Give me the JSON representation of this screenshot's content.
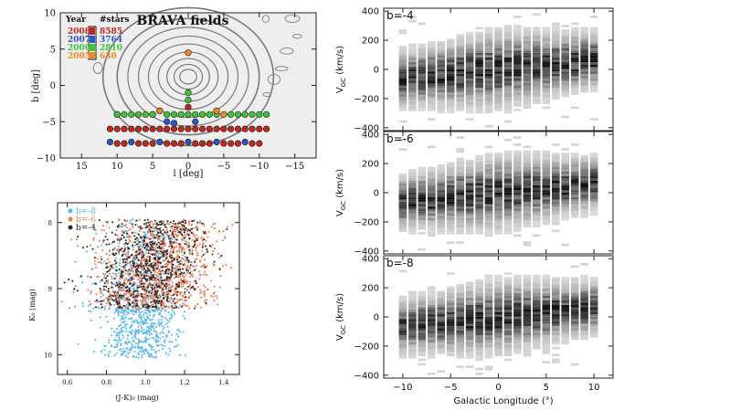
{
  "chart_data": [
    {
      "id": "brava",
      "type": "scatter",
      "title": "BRAVA fields",
      "xlabel": "l [deg]",
      "ylabel": "b [deg]",
      "xlim": [
        18,
        -18
      ],
      "ylim": [
        -10,
        10
      ],
      "xticks": [
        15,
        10,
        5,
        0,
        -5,
        -10,
        -15
      ],
      "yticks": [
        10,
        5,
        0,
        -5,
        -10
      ],
      "legend": {
        "header_year": "Year",
        "header_stars": "#stars",
        "rows": [
          {
            "year": "2008",
            "stars": "8585",
            "color": "#c0281c"
          },
          {
            "year": "2007",
            "stars": "3764",
            "color": "#2a55c8"
          },
          {
            "year": "2006",
            "stars": "2810",
            "color": "#3fc43a"
          },
          {
            "year": "2005",
            "stars": "630",
            "color": "#f08a20"
          }
        ]
      },
      "series": [
        {
          "year": "2008",
          "color": "#c0281c",
          "points": [
            [
              11,
              -6
            ],
            [
              10,
              -6
            ],
            [
              9,
              -6
            ],
            [
              8,
              -6
            ],
            [
              7,
              -6
            ],
            [
              6,
              -6
            ],
            [
              5,
              -6
            ],
            [
              4,
              -6
            ],
            [
              3,
              -6
            ],
            [
              2,
              -6
            ],
            [
              1,
              -6
            ],
            [
              0,
              -6
            ],
            [
              -1,
              -6
            ],
            [
              -2,
              -6
            ],
            [
              -3,
              -6
            ],
            [
              -4,
              -6
            ],
            [
              -5,
              -6
            ],
            [
              -6,
              -6
            ],
            [
              -7,
              -6
            ],
            [
              -8,
              -6
            ],
            [
              -9,
              -6
            ],
            [
              -10,
              -6
            ],
            [
              -11,
              -6
            ],
            [
              10,
              -8
            ],
            [
              9,
              -8
            ],
            [
              7,
              -8
            ],
            [
              6,
              -8
            ],
            [
              5,
              -8
            ],
            [
              3,
              -8
            ],
            [
              2,
              -8
            ],
            [
              1,
              -8
            ],
            [
              -1,
              -8
            ],
            [
              -2,
              -8
            ],
            [
              -3,
              -8
            ],
            [
              -5,
              -8
            ],
            [
              -6,
              -8
            ],
            [
              -7,
              -8
            ],
            [
              -9,
              -8
            ],
            [
              -10,
              -8
            ],
            [
              10,
              -4
            ],
            [
              4,
              -3.5
            ],
            [
              0,
              -3
            ]
          ]
        },
        {
          "year": "2007",
          "color": "#2a55c8",
          "points": [
            [
              11,
              -7.8
            ],
            [
              8,
              -7.8
            ],
            [
              4,
              -7.8
            ],
            [
              0,
              -7.8
            ],
            [
              -4,
              -7.8
            ],
            [
              -8,
              -7.8
            ],
            [
              3,
              -5
            ],
            [
              -1,
              -5
            ],
            [
              5,
              -4
            ],
            [
              2,
              -5.2
            ]
          ]
        },
        {
          "year": "2006",
          "color": "#3fc43a",
          "points": [
            [
              10,
              -4
            ],
            [
              9,
              -4
            ],
            [
              8,
              -4
            ],
            [
              7,
              -4
            ],
            [
              6,
              -4
            ],
            [
              5,
              -4
            ],
            [
              3,
              -4
            ],
            [
              2,
              -4
            ],
            [
              1,
              -4
            ],
            [
              0,
              -4
            ],
            [
              -1,
              -4
            ],
            [
              -2,
              -4
            ],
            [
              -3,
              -4
            ],
            [
              -4,
              -4
            ],
            [
              -6,
              -4
            ],
            [
              -7,
              -4
            ],
            [
              -8,
              -4
            ],
            [
              -9,
              -4
            ],
            [
              -10,
              -4
            ],
            [
              -11,
              -4
            ],
            [
              0,
              -2
            ],
            [
              0,
              -1
            ]
          ]
        },
        {
          "year": "2005",
          "color": "#f08a20",
          "points": [
            [
              0,
              4.5
            ],
            [
              -4,
              -3.5
            ],
            [
              -5,
              -4
            ],
            [
              4,
              -3.5
            ]
          ]
        }
      ]
    },
    {
      "id": "cmd",
      "type": "scatter",
      "xlabel": "(J-K)₀ (mag)",
      "ylabel": "K₀ (mag)",
      "xlim": [
        0.55,
        1.48
      ],
      "ylim": [
        10.3,
        7.7
      ],
      "xticks": [
        0.6,
        0.8,
        1.0,
        1.2,
        1.4
      ],
      "yticks": [
        8,
        9,
        10
      ],
      "legend": [
        {
          "label": "b=-8",
          "color": "#5bb8ea"
        },
        {
          "label": "b=-6",
          "color": "#ef7c58"
        },
        {
          "label": "b=-4",
          "color": "#2e2e2e"
        }
      ],
      "series": [
        {
          "name": "b=-8",
          "color": "#5bb8ea",
          "n": 950,
          "jk_center": 1.0,
          "jk_spread": 0.12,
          "k_range": [
            7.95,
            10.05
          ],
          "faint_fraction": 0.45
        },
        {
          "name": "b=-6",
          "color": "#ef7c58",
          "n": 1100,
          "jk_center": 1.07,
          "jk_spread": 0.15,
          "k_range": [
            7.95,
            9.3
          ]
        },
        {
          "name": "b=-4",
          "color": "#2e2e2e",
          "n": 700,
          "jk_center": 1.02,
          "jk_spread": 0.14,
          "k_range": [
            7.95,
            9.3
          ]
        }
      ]
    },
    {
      "id": "vgc",
      "type": "heatmap",
      "xlabel": "Galactic Longitude (°)",
      "ylabel": "V_GC (km/s)",
      "ylabel_main": "V",
      "ylabel_sub": "GC",
      "ylabel_unit": " (km/s)",
      "xlim": [
        -12,
        12
      ],
      "ylim": [
        -420,
        420
      ],
      "xticks": [
        -10,
        -5,
        0,
        5,
        10
      ],
      "yticks": [
        400,
        200,
        0,
        -200,
        -400
      ],
      "x_centers": [
        -10,
        -9,
        -8,
        -7,
        -6,
        -5,
        -4,
        -3,
        -2,
        -1,
        0,
        1,
        2,
        3,
        4,
        5,
        6,
        7,
        8,
        9,
        10
      ],
      "dispersion_kms": [
        85,
        88,
        90,
        92,
        96,
        100,
        104,
        108,
        112,
        114,
        116,
        114,
        112,
        108,
        104,
        100,
        96,
        92,
        90,
        88,
        85
      ],
      "mean_velocity_per_degree_kms": 6.5,
      "panels": [
        {
          "label": "b=-4",
          "b": -4
        },
        {
          "label": "b=-6",
          "b": -6
        },
        {
          "label": "b=-8",
          "b": -8
        }
      ]
    }
  ]
}
